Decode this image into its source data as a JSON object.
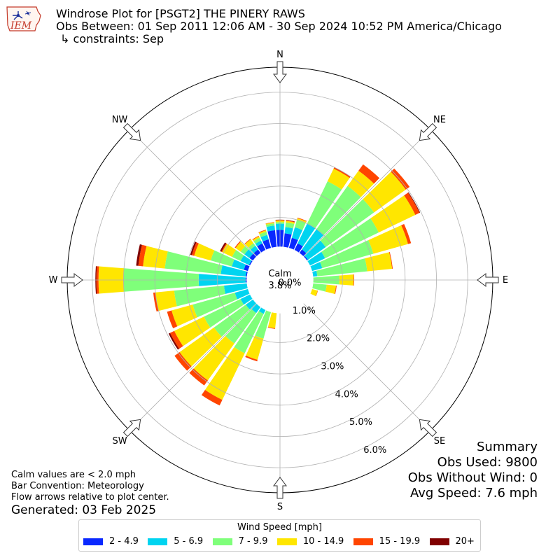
{
  "header": {
    "logo_text": "IEM",
    "title_line1": "Windrose Plot for [PSGT2] THE PINERY RAWS",
    "title_line2": "Obs Between: 01 Sep 2011 12:06 AM - 30 Sep 2024 10:52 PM America/Chicago",
    "title_line3": "↳ constraints: Sep"
  },
  "compass": {
    "N": "N",
    "NE": "NE",
    "E": "E",
    "SE": "SE",
    "S": "S",
    "SW": "SW",
    "W": "W",
    "NW": "NW"
  },
  "calm": {
    "label": "Calm",
    "value": "3.8%"
  },
  "radial_ticks": [
    "0.0%",
    "1.0%",
    "2.0%",
    "3.0%",
    "4.0%",
    "5.0%",
    "6.0%"
  ],
  "summary": {
    "title": "Summary",
    "obs_used": "Obs Used: 9800",
    "obs_without_wind": "Obs Without Wind: 0",
    "avg_speed": "Avg Speed: 7.6 mph"
  },
  "notes": {
    "line1": "Calm values are < 2.0 mph",
    "line2": "Bar Convention: Meteorology",
    "line3": "Flow arrows relative to plot center.",
    "generated": "Generated: 03 Feb 2025"
  },
  "legend": {
    "title": "Wind Speed [mph]",
    "items": [
      {
        "label": "2 - 4.9",
        "color": "#0a28ff"
      },
      {
        "label": "5 - 6.9",
        "color": "#00d4f0"
      },
      {
        "label": "7 - 9.9",
        "color": "#7fff7a"
      },
      {
        "label": "10 - 14.9",
        "color": "#ffe600"
      },
      {
        "label": "15 - 19.9",
        "color": "#ff4500"
      },
      {
        "label": "20+",
        "color": "#800000"
      }
    ]
  },
  "chart_data": {
    "type": "windrose",
    "radial_unit": "%",
    "rmax": 6.8,
    "calm_percent": 3.8,
    "direction_labels": [
      "N",
      "NE",
      "E",
      "SE",
      "S",
      "SW",
      "W",
      "NW"
    ],
    "bins": [
      "2 - 4.9",
      "5 - 6.9",
      "7 - 9.9",
      "10 - 14.9",
      "15 - 19.9",
      "20+"
    ],
    "directions": [
      {
        "dir": 0,
        "cum": [
          1.6,
          1.8,
          1.85,
          1.9,
          1.92,
          1.93
        ]
      },
      {
        "dir": 10,
        "cum": [
          1.5,
          1.7,
          1.85,
          1.9,
          1.92,
          1.93
        ]
      },
      {
        "dir": 20,
        "cum": [
          1.4,
          1.75,
          2.0,
          2.05,
          2.07,
          2.07
        ]
      },
      {
        "dir": 30,
        "cum": [
          1.3,
          2.0,
          3.5,
          3.95,
          4.0,
          4.0
        ]
      },
      {
        "dir": 40,
        "cum": [
          1.2,
          2.0,
          3.7,
          4.3,
          4.55,
          4.55
        ]
      },
      {
        "dir": 50,
        "cum": [
          1.1,
          1.8,
          3.7,
          4.95,
          5.1,
          5.1
        ]
      },
      {
        "dir": 60,
        "cum": [
          1.0,
          1.6,
          3.5,
          4.8,
          4.95,
          4.97
        ]
      },
      {
        "dir": 70,
        "cum": [
          0.8,
          1.4,
          3.1,
          4.25,
          4.35,
          4.35
        ]
      },
      {
        "dir": 80,
        "cum": [
          0.6,
          1.2,
          2.8,
          3.6,
          3.62,
          3.62
        ]
      },
      {
        "dir": 90,
        "cum": [
          0.3,
          0.9,
          1.9,
          2.35,
          2.37,
          2.37
        ]
      },
      {
        "dir": 100,
        "cum": [
          0.2,
          0.75,
          1.5,
          1.8,
          1.82,
          1.82
        ]
      },
      {
        "dir": 110,
        "cum": [
          0.1,
          0.55,
          1.0,
          1.25,
          1.26,
          1.26
        ]
      },
      {
        "dir": 120,
        "cum": [
          0.05,
          0.4,
          0.75,
          0.82,
          0.83,
          0.83
        ]
      },
      {
        "dir": 130,
        "cum": [
          0.02,
          0.15,
          0.3,
          0.32,
          0.32,
          0.32
        ]
      },
      {
        "dir": 140,
        "cum": [
          0.01,
          0.1,
          0.15,
          0.16,
          0.16,
          0.16
        ]
      },
      {
        "dir": 150,
        "cum": [
          0.01,
          0.1,
          0.2,
          0.22,
          0.22,
          0.22
        ]
      },
      {
        "dir": 160,
        "cum": [
          0.04,
          0.25,
          0.38,
          0.4,
          0.4,
          0.4
        ]
      },
      {
        "dir": 170,
        "cum": [
          0.02,
          0.2,
          0.35,
          0.37,
          0.37,
          0.37
        ]
      },
      {
        "dir": 180,
        "cum": [
          0.02,
          0.15,
          0.6,
          0.62,
          0.62,
          0.62
        ]
      },
      {
        "dir": 190,
        "cum": [
          0.05,
          0.4,
          1.05,
          1.55,
          1.57,
          1.57
        ]
      },
      {
        "dir": 200,
        "cum": [
          0.3,
          0.9,
          1.95,
          2.65,
          2.7,
          2.7
        ]
      },
      {
        "dir": 210,
        "cum": [
          0.4,
          1.2,
          2.6,
          4.25,
          4.45,
          4.45
        ]
      },
      {
        "dir": 220,
        "cum": [
          0.6,
          1.3,
          2.5,
          3.95,
          4.15,
          4.15
        ]
      },
      {
        "dir": 230,
        "cum": [
          0.7,
          1.35,
          2.6,
          3.95,
          4.15,
          4.15
        ]
      },
      {
        "dir": 240,
        "cum": [
          0.8,
          1.4,
          2.7,
          3.75,
          3.9,
          3.95
        ]
      },
      {
        "dir": 250,
        "cum": [
          0.9,
          1.5,
          2.9,
          3.6,
          3.75,
          3.75
        ]
      },
      {
        "dir": 260,
        "cum": [
          1.0,
          1.8,
          3.4,
          4.0,
          4.07,
          4.07
        ]
      },
      {
        "dir": 270,
        "cum": [
          1.1,
          2.6,
          5.0,
          5.8,
          5.87,
          5.9
        ]
      },
      {
        "dir": 280,
        "cum": [
          1.1,
          1.9,
          3.7,
          4.4,
          4.55,
          4.62
        ]
      },
      {
        "dir": 290,
        "cum": [
          1.2,
          1.6,
          2.3,
          2.85,
          2.93,
          2.98
        ]
      },
      {
        "dir": 300,
        "cum": [
          1.1,
          1.4,
          1.7,
          2.05,
          2.08,
          2.13
        ]
      },
      {
        "dir": 310,
        "cum": [
          1.2,
          1.4,
          1.55,
          1.75,
          1.78,
          1.78
        ]
      },
      {
        "dir": 320,
        "cum": [
          1.2,
          1.35,
          1.45,
          1.6,
          1.62,
          1.62
        ]
      },
      {
        "dir": 330,
        "cum": [
          1.3,
          1.4,
          1.5,
          1.55,
          1.57,
          1.57
        ]
      },
      {
        "dir": 340,
        "cum": [
          1.35,
          1.5,
          1.6,
          1.65,
          1.67,
          1.67
        ]
      },
      {
        "dir": 350,
        "cum": [
          1.6,
          1.75,
          1.82,
          1.85,
          1.86,
          1.86
        ]
      }
    ]
  }
}
